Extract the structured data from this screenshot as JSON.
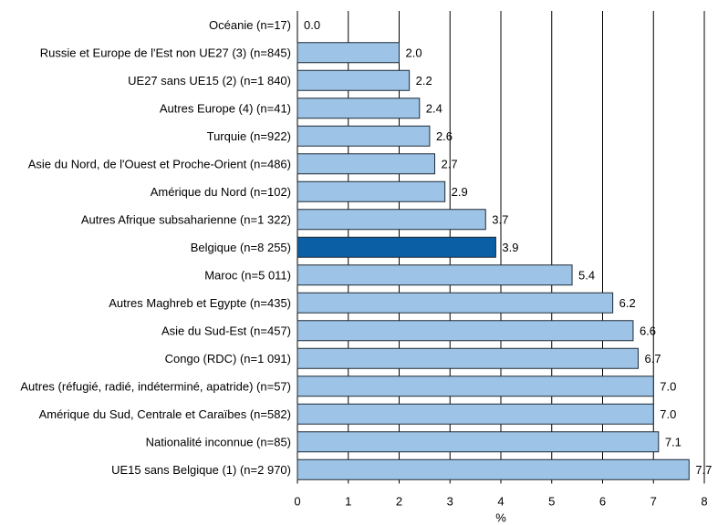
{
  "chart_data": {
    "type": "bar",
    "orientation": "horizontal",
    "categories": [
      "Océanie (n=17)",
      "Russie et Europe de l'Est non UE27 (3) (n=845)",
      "UE27 sans UE15 (2) (n=1 840)",
      "Autres Europe (4) (n=41)",
      "Turquie (n=922)",
      "Asie du Nord, de l'Ouest et Proche-Orient (n=486)",
      "Amérique du Nord (n=102)",
      "Autres Afrique subsaharienne (n=1 322)",
      "Belgique (n=8 255)",
      "Maroc (n=5 011)",
      "Autres Maghreb et Egypte (n=435)",
      "Asie du Sud-Est (n=457)",
      "Congo (RDC) (n=1 091)",
      "Autres (réfugié, radié, indéterminé, apatride) (n=57)",
      "Amérique du Sud, Centrale et Caraïbes (n=582)",
      "Nationalité inconnue (n=85)",
      "UE15 sans Belgique (1) (n=2 970)"
    ],
    "values": [
      0.0,
      2.0,
      2.2,
      2.4,
      2.6,
      2.7,
      2.9,
      3.7,
      3.9,
      5.4,
      6.2,
      6.6,
      6.7,
      7.0,
      7.0,
      7.1,
      7.7
    ],
    "value_labels": [
      "0.0",
      "2.0",
      "2.2",
      "2.4",
      "2.6",
      "2.7",
      "2.9",
      "3.7",
      "3.9",
      "5.4",
      "6.2",
      "6.6",
      "6.7",
      "7.0",
      "7.0",
      "7.1",
      "7.7"
    ],
    "highlight_category": "Belgique (n=8 255)",
    "xlabel": "%",
    "ylabel": "",
    "xlim": [
      0,
      8
    ],
    "xticks": [
      "0",
      "1",
      "2",
      "3",
      "4",
      "5",
      "6",
      "7",
      "8"
    ],
    "grid": "vertical",
    "colors": {
      "bar": "#9dc3e6",
      "bar_highlight": "#0b5fa5",
      "bar_stroke": "#1f2a36",
      "grid": "#000000"
    }
  }
}
